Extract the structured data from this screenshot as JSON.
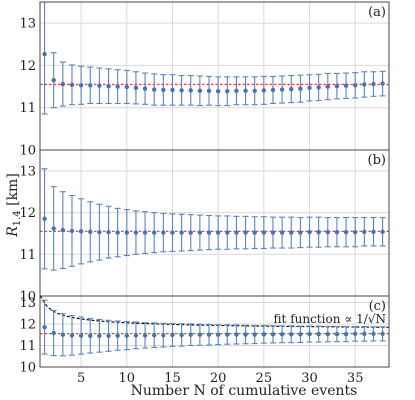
{
  "figure": {
    "xlabel": "Number N of cumulative events",
    "ylabel": "R1.4 [km]",
    "colors": {
      "marker": "#4a72b0",
      "errorbar": "#5b83c2",
      "reference": "#e8433c",
      "fit": "#000000",
      "grid": "#d9d9d9"
    }
  },
  "chart_data": [
    {
      "type": "scatter",
      "panel_label": "(a)",
      "xlim": [
        0.5,
        38.7
      ],
      "ylim": [
        10,
        13.5
      ],
      "xticks": [
        5,
        10,
        15,
        20,
        25,
        30,
        35
      ],
      "yticks": [
        10,
        11,
        12,
        13
      ],
      "grid": true,
      "reference_y": 11.55,
      "x": [
        1,
        2,
        3,
        4,
        5,
        6,
        7,
        8,
        9,
        10,
        11,
        12,
        13,
        14,
        15,
        16,
        17,
        18,
        19,
        20,
        21,
        22,
        23,
        24,
        25,
        26,
        27,
        28,
        29,
        30,
        31,
        32,
        33,
        34,
        35,
        36,
        37,
        38
      ],
      "y": [
        12.27,
        11.65,
        11.56,
        11.54,
        11.53,
        11.53,
        11.52,
        11.51,
        11.5,
        11.49,
        11.47,
        11.45,
        11.43,
        11.42,
        11.42,
        11.41,
        11.41,
        11.4,
        11.4,
        11.39,
        11.39,
        11.4,
        11.4,
        11.4,
        11.41,
        11.42,
        11.43,
        11.44,
        11.45,
        11.47,
        11.48,
        11.5,
        11.51,
        11.52,
        11.53,
        11.55,
        11.56,
        11.57
      ],
      "yerr": [
        1.42,
        0.65,
        0.52,
        0.47,
        0.45,
        0.43,
        0.42,
        0.41,
        0.4,
        0.39,
        0.38,
        0.37,
        0.37,
        0.36,
        0.36,
        0.35,
        0.35,
        0.35,
        0.34,
        0.34,
        0.34,
        0.33,
        0.33,
        0.33,
        0.33,
        0.32,
        0.32,
        0.32,
        0.32,
        0.31,
        0.31,
        0.31,
        0.3,
        0.3,
        0.3,
        0.3,
        0.29,
        0.29
      ]
    },
    {
      "type": "scatter",
      "panel_label": "(b)",
      "xlim": [
        0.5,
        38.7
      ],
      "ylim": [
        10,
        13.5
      ],
      "xticks": [
        5,
        10,
        15,
        20,
        25,
        30,
        35
      ],
      "yticks": [
        10,
        11,
        12,
        13
      ],
      "grid": true,
      "reference_y": 11.55,
      "x": [
        1,
        2,
        3,
        4,
        5,
        6,
        7,
        8,
        9,
        10,
        11,
        12,
        13,
        14,
        15,
        16,
        17,
        18,
        19,
        20,
        21,
        22,
        23,
        24,
        25,
        26,
        27,
        28,
        29,
        30,
        31,
        32,
        33,
        34,
        35,
        36,
        37,
        38
      ],
      "y": [
        11.85,
        11.62,
        11.58,
        11.56,
        11.55,
        11.54,
        11.53,
        11.53,
        11.52,
        11.52,
        11.52,
        11.52,
        11.52,
        11.52,
        11.52,
        11.52,
        11.52,
        11.52,
        11.52,
        11.52,
        11.52,
        11.52,
        11.52,
        11.52,
        11.52,
        11.52,
        11.52,
        11.52,
        11.52,
        11.53,
        11.53,
        11.53,
        11.53,
        11.53,
        11.53,
        11.54,
        11.54,
        11.54
      ],
      "yerr": [
        1.2,
        1.0,
        0.92,
        0.85,
        0.78,
        0.72,
        0.67,
        0.62,
        0.58,
        0.55,
        0.52,
        0.5,
        0.48,
        0.46,
        0.45,
        0.44,
        0.43,
        0.42,
        0.41,
        0.4,
        0.4,
        0.39,
        0.39,
        0.38,
        0.38,
        0.37,
        0.37,
        0.37,
        0.36,
        0.36,
        0.36,
        0.35,
        0.35,
        0.35,
        0.35,
        0.34,
        0.34,
        0.34
      ]
    },
    {
      "type": "scatter",
      "panel_label": "(c)",
      "xlim": [
        0.5,
        38.7
      ],
      "ylim": [
        10,
        13.3
      ],
      "xticks": [
        5,
        10,
        15,
        20,
        25,
        30,
        35
      ],
      "yticks": [
        10,
        11,
        12,
        13
      ],
      "grid": true,
      "reference_y": 11.55,
      "fit_annotation": "fit function ∝ 1/√N",
      "fit_function": {
        "form": "a + b/sqrt(N)",
        "a": 11.63,
        "b": 1.35
      },
      "x": [
        1,
        2,
        3,
        4,
        5,
        6,
        7,
        8,
        9,
        10,
        11,
        12,
        13,
        14,
        15,
        16,
        17,
        18,
        19,
        20,
        21,
        22,
        23,
        24,
        25,
        26,
        27,
        28,
        29,
        30,
        31,
        32,
        33,
        34,
        35,
        36,
        37,
        38
      ],
      "y": [
        11.85,
        11.58,
        11.5,
        11.47,
        11.46,
        11.45,
        11.45,
        11.45,
        11.46,
        11.46,
        11.47,
        11.47,
        11.48,
        11.48,
        11.49,
        11.49,
        11.5,
        11.5,
        11.5,
        11.5,
        11.51,
        11.51,
        11.51,
        11.51,
        11.52,
        11.52,
        11.52,
        11.52,
        11.52,
        11.53,
        11.53,
        11.53,
        11.53,
        11.53,
        11.54,
        11.54,
        11.54,
        11.54
      ],
      "yerr": [
        1.25,
        1.05,
        0.98,
        0.92,
        0.86,
        0.8,
        0.76,
        0.72,
        0.68,
        0.65,
        0.62,
        0.59,
        0.57,
        0.55,
        0.53,
        0.52,
        0.5,
        0.49,
        0.48,
        0.46,
        0.45,
        0.44,
        0.43,
        0.42,
        0.41,
        0.4,
        0.39,
        0.39,
        0.38,
        0.37,
        0.37,
        0.36,
        0.35,
        0.35,
        0.34,
        0.34,
        0.33,
        0.33
      ]
    }
  ]
}
